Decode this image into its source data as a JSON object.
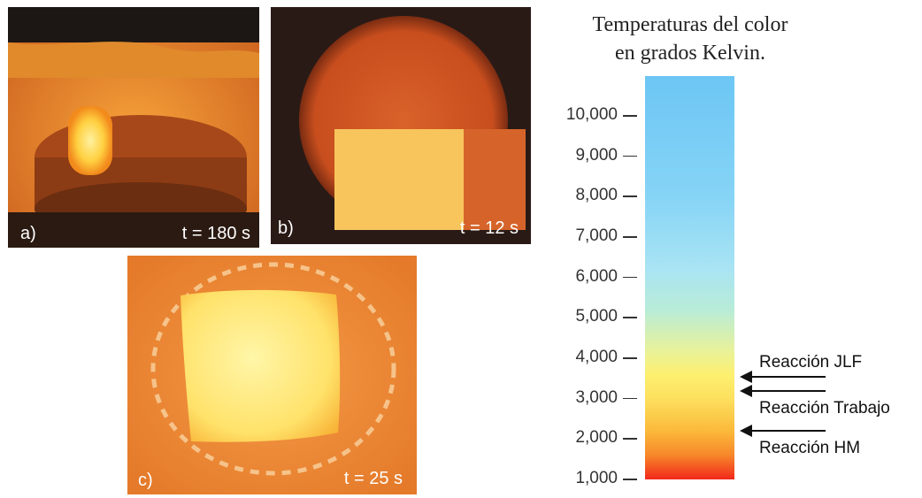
{
  "panels": [
    {
      "label": "a)",
      "time": "t = 180 s"
    },
    {
      "label": "b)",
      "time": "t = 12 s"
    },
    {
      "label": "c)",
      "time": "t = 25 s"
    }
  ],
  "scale": {
    "title_lines": [
      "Temperaturas del color",
      "en grados Kelvin."
    ],
    "ticks": [
      "10,000",
      "9,000",
      "8,000",
      "7,000",
      "6,000",
      "5,000",
      "4,000",
      "3,000",
      "2,000",
      "1,000"
    ],
    "tick_values": [
      10000,
      9000,
      8000,
      7000,
      6000,
      5000,
      4000,
      3000,
      2000,
      1000
    ],
    "colors": {
      "cold": "#6cc6f4",
      "mid": "#fdf070",
      "hot": "#f2281c"
    }
  },
  "reactions": [
    {
      "label": "Reacción JLF",
      "value_k": 3550
    },
    {
      "label": "Reacción Trabajo",
      "value_k": 3200
    },
    {
      "label": "Reacción HM",
      "value_k": 2200
    }
  ]
}
